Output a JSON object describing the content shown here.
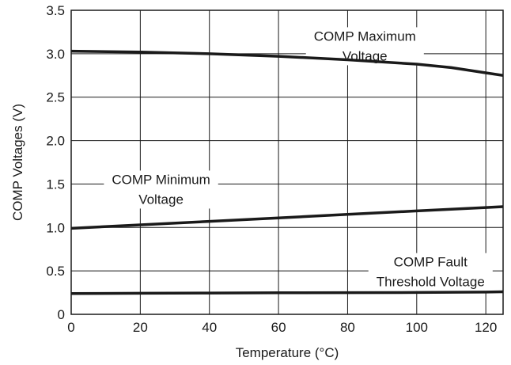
{
  "chart_data": {
    "type": "line",
    "title": "",
    "xlabel": "Temperature (°C)",
    "ylabel": "COMP Voltages (V)",
    "xlim": [
      0,
      125
    ],
    "ylim": [
      0,
      3.5
    ],
    "x_ticks": [
      0,
      20,
      40,
      60,
      80,
      100,
      120
    ],
    "y_ticks": [
      0,
      0.5,
      1.0,
      1.5,
      2.0,
      2.5,
      3.0,
      3.5
    ],
    "x_tick_labels": [
      "0",
      "20",
      "40",
      "60",
      "80",
      "100",
      "120"
    ],
    "y_tick_labels": [
      "0",
      "0.5",
      "1.0",
      "1.5",
      "2.0",
      "2.5",
      "3.0",
      "3.5"
    ],
    "grid": true,
    "series": [
      {
        "x": [
          0,
          20,
          40,
          60,
          80,
          100,
          110,
          120,
          125
        ],
        "y": [
          3.03,
          3.02,
          3.0,
          2.97,
          2.93,
          2.88,
          2.84,
          2.78,
          2.75
        ]
      },
      {
        "x": [
          0,
          20,
          40,
          60,
          80,
          100,
          120,
          125
        ],
        "y": [
          0.99,
          1.03,
          1.07,
          1.11,
          1.15,
          1.19,
          1.23,
          1.24
        ]
      },
      {
        "x": [
          0,
          20,
          40,
          60,
          80,
          100,
          120,
          125
        ],
        "y": [
          0.24,
          0.242,
          0.245,
          0.248,
          0.25,
          0.252,
          0.256,
          0.26
        ]
      }
    ],
    "annotations": [
      {
        "lines": [
          "COMP Maximum",
          "Voltage"
        ],
        "x": 85,
        "y": 3.15
      },
      {
        "lines": [
          "COMP Minimum",
          "Voltage"
        ],
        "x": 26,
        "y": 1.5
      },
      {
        "lines": [
          "COMP Fault",
          "Threshold Voltage"
        ],
        "x": 104,
        "y": 0.55
      }
    ]
  }
}
